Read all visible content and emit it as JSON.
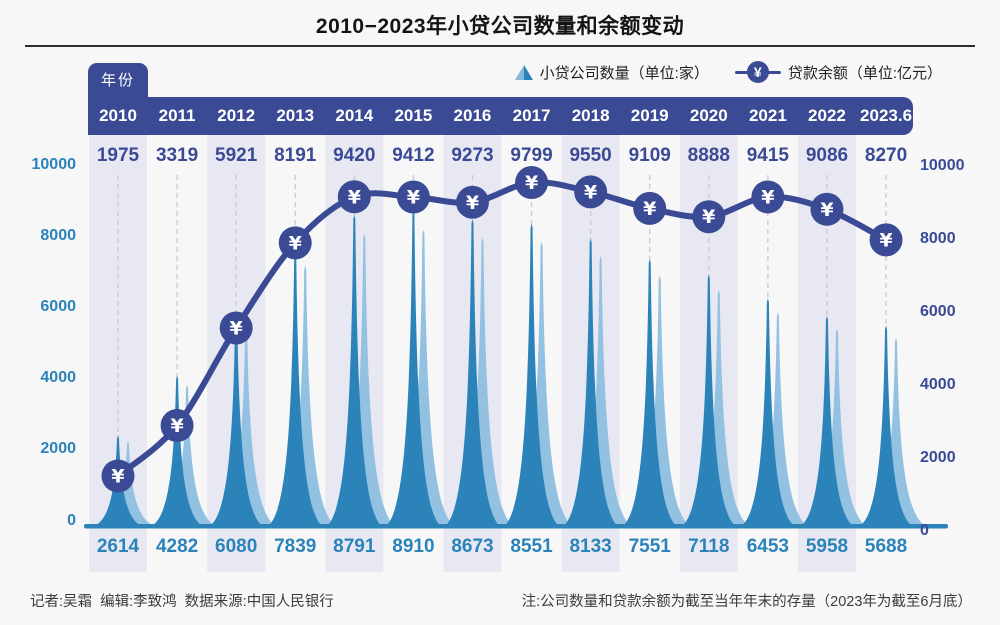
{
  "title": "2010−2023年小贷公司数量和余额变动",
  "year_tab_label": "年份",
  "legend": {
    "position": "top-right",
    "items": [
      {
        "icon": "company-peak-icon",
        "label": "小贷公司数量（单位:家）"
      },
      {
        "icon": "yuan-circle-icon",
        "label": "贷款余额（单位:亿元）"
      }
    ]
  },
  "yuan_symbol": "¥",
  "footer": {
    "left": "记者:吴霜  编辑:李致鸿  数据来源:中国人民银行",
    "right": "注:公司数量和贷款余额为截至当年年末的存量（2023年为截至6月底）"
  },
  "colors": {
    "navy": "#3b4a94",
    "blue": "#2b83ba",
    "light_blue": "#93c1e1",
    "stripe": "#e8e8f2",
    "background": "#f7f7f8",
    "gridline": "#c9c9d4",
    "title_rule": "#2d2d2d"
  },
  "chart_data": {
    "type": "line",
    "categories": [
      "2010",
      "2011",
      "2012",
      "2013",
      "2014",
      "2015",
      "2016",
      "2017",
      "2018",
      "2019",
      "2020",
      "2021",
      "2022",
      "2023.6"
    ],
    "series": [
      {
        "name": "小贷公司数量（单位:家）",
        "style": "spike-area",
        "color": "#2b83ba",
        "secondary_color": "#93c1e1",
        "axis": "left",
        "values": [
          2614,
          4282,
          6080,
          7839,
          8791,
          8910,
          8673,
          8551,
          8133,
          7551,
          7118,
          6453,
          5958,
          5688
        ]
      },
      {
        "name": "贷款余额（单位:亿元）",
        "style": "line-with-yuan-markers",
        "color": "#3b4a94",
        "marker_glyph": "¥",
        "axis": "right",
        "values": [
          1975,
          3319,
          5921,
          8191,
          9420,
          9412,
          9273,
          9799,
          9550,
          9109,
          8888,
          9415,
          9086,
          8270
        ]
      }
    ],
    "ylim": [
      0,
      10000
    ],
    "yticks": [
      0,
      2000,
      4000,
      6000,
      8000,
      10000
    ],
    "dual_axis": true,
    "grid": "vertical-dashed",
    "column_stripes": "alternating"
  }
}
